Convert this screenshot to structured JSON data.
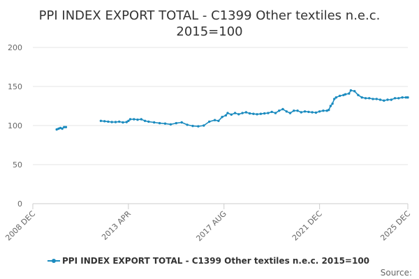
{
  "chart_data": {
    "type": "line",
    "title": [
      "PPI INDEX EXPORT TOTAL - C1399 Other textiles n.e.c.",
      "2015=100"
    ],
    "xlabel": "",
    "ylabel": "",
    "ylim": [
      0,
      200
    ],
    "yticks": [
      "0",
      "50",
      "100",
      "150",
      "200"
    ],
    "xticks": [
      "2008 DEC",
      "2013 APR",
      "2017 AUG",
      "2021 DEC",
      "2025 DEC"
    ],
    "grid": "horizontal",
    "legend_position": "bottom",
    "colors": {
      "series": "#1b8bbf",
      "grid": "#e6e6e6",
      "axis": "#cccccc"
    },
    "series": [
      {
        "name": "PPI INDEX EXPORT TOTAL - C1399 Other textiles n.e.c. 2015=100",
        "segments": [
          [
            [
              "2010-01",
              95
            ],
            [
              "2010-02",
              96
            ],
            [
              "2010-03",
              97
            ],
            [
              "2010-04",
              96
            ],
            [
              "2010-05",
              98
            ],
            [
              "2010-06",
              98
            ]
          ],
          [
            [
              "2012-01",
              106
            ],
            [
              "2012-03",
              105.5
            ],
            [
              "2012-05",
              105
            ],
            [
              "2012-07",
              104.5
            ],
            [
              "2012-09",
              104.5
            ],
            [
              "2012-11",
              105
            ],
            [
              "2013-01",
              104
            ],
            [
              "2013-03",
              104.5
            ],
            [
              "2013-04",
              106
            ],
            [
              "2013-05",
              108
            ],
            [
              "2013-07",
              108
            ],
            [
              "2013-09",
              107.5
            ],
            [
              "2013-11",
              108
            ],
            [
              "2014-01",
              106
            ],
            [
              "2014-03",
              105
            ],
            [
              "2014-06",
              104
            ],
            [
              "2014-09",
              103
            ],
            [
              "2014-12",
              102.5
            ],
            [
              "2015-03",
              101.5
            ],
            [
              "2015-06",
              103
            ],
            [
              "2015-09",
              104
            ],
            [
              "2015-12",
              101
            ],
            [
              "2016-03",
              99.5
            ],
            [
              "2016-06",
              99
            ],
            [
              "2016-09",
              100
            ],
            [
              "2016-12",
              105
            ],
            [
              "2017-03",
              107
            ],
            [
              "2017-05",
              106
            ],
            [
              "2017-07",
              111
            ],
            [
              "2017-09",
              113
            ],
            [
              "2017-10",
              116
            ],
            [
              "2017-12",
              114
            ],
            [
              "2018-02",
              116
            ],
            [
              "2018-04",
              114.5
            ],
            [
              "2018-06",
              116
            ],
            [
              "2018-08",
              117
            ],
            [
              "2018-10",
              115.5
            ],
            [
              "2018-12",
              115
            ],
            [
              "2019-02",
              114.5
            ],
            [
              "2019-04",
              115
            ],
            [
              "2019-06",
              115.5
            ],
            [
              "2019-08",
              116
            ],
            [
              "2019-10",
              117.5
            ],
            [
              "2019-12",
              116
            ],
            [
              "2020-02",
              119
            ],
            [
              "2020-04",
              121
            ],
            [
              "2020-06",
              118
            ],
            [
              "2020-08",
              116
            ],
            [
              "2020-10",
              119
            ],
            [
              "2020-12",
              119
            ],
            [
              "2021-02",
              117
            ],
            [
              "2021-04",
              118
            ],
            [
              "2021-06",
              117.5
            ],
            [
              "2021-08",
              117
            ],
            [
              "2021-10",
              116.5
            ],
            [
              "2021-12",
              118
            ],
            [
              "2022-02",
              119
            ],
            [
              "2022-04",
              119
            ],
            [
              "2022-05",
              120
            ],
            [
              "2022-06",
              125
            ],
            [
              "2022-07",
              128
            ],
            [
              "2022-08",
              134
            ],
            [
              "2022-09",
              136
            ],
            [
              "2022-11",
              138
            ],
            [
              "2023-01",
              139
            ],
            [
              "2023-02",
              140
            ],
            [
              "2023-04",
              141
            ],
            [
              "2023-05",
              145
            ],
            [
              "2023-07",
              144
            ],
            [
              "2023-09",
              139
            ],
            [
              "2023-11",
              136
            ],
            [
              "2024-01",
              135
            ],
            [
              "2024-03",
              135
            ],
            [
              "2024-05",
              134
            ],
            [
              "2024-07",
              134
            ],
            [
              "2024-09",
              133
            ],
            [
              "2024-11",
              132
            ],
            [
              "2025-01",
              133
            ],
            [
              "2025-03",
              133
            ],
            [
              "2025-05",
              135
            ],
            [
              "2025-07",
              135
            ],
            [
              "2025-09",
              136
            ],
            [
              "2025-11",
              136
            ],
            [
              "2025-12",
              136
            ]
          ]
        ]
      }
    ],
    "source": "Source:"
  }
}
